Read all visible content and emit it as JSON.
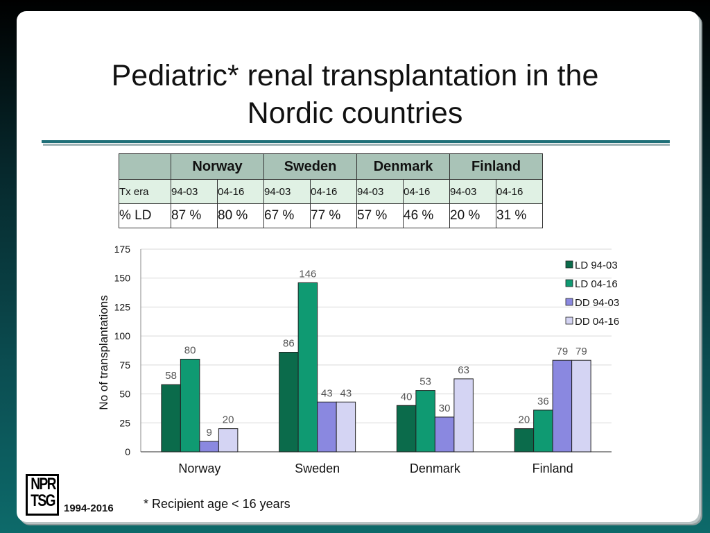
{
  "title_line1": "Pediatric* renal transplantation in the",
  "title_line2": "Nordic countries",
  "table": {
    "countries": [
      "Norway",
      "Sweden",
      "Denmark",
      "Finland"
    ],
    "row_label_era": "Tx era",
    "eras": [
      "94-03",
      "04-16"
    ],
    "row_label_ld": "% LD",
    "ld_pct": [
      "87 %",
      "80 %",
      "67 %",
      "77 %",
      "57 %",
      "46 %",
      "20 %",
      "31 %"
    ]
  },
  "chart_data": {
    "type": "bar",
    "categories": [
      "Norway",
      "Sweden",
      "Denmark",
      "Finland"
    ],
    "series": [
      {
        "name": "LD 94-03",
        "values": [
          58,
          86,
          40,
          20
        ],
        "color": "#0b6b4b"
      },
      {
        "name": "LD 04-16",
        "values": [
          80,
          146,
          53,
          36
        ],
        "color": "#0f9a72"
      },
      {
        "name": "DD 94-03",
        "values": [
          9,
          43,
          30,
          79
        ],
        "color": "#8a88e0"
      },
      {
        "name": "DD 04-16",
        "values": [
          20,
          43,
          63,
          79
        ],
        "color": "#d4d4f3"
      }
    ],
    "ylabel": "No of transplantations",
    "ylim": [
      0,
      175
    ],
    "yticks": [
      0,
      25,
      50,
      75,
      100,
      125,
      150,
      175
    ],
    "grid": true,
    "legend": "right"
  },
  "footnote": "* Recipient age < 16 years",
  "logo": {
    "line1": "NPR",
    "line2": "TSG"
  },
  "years": "1994-2016"
}
